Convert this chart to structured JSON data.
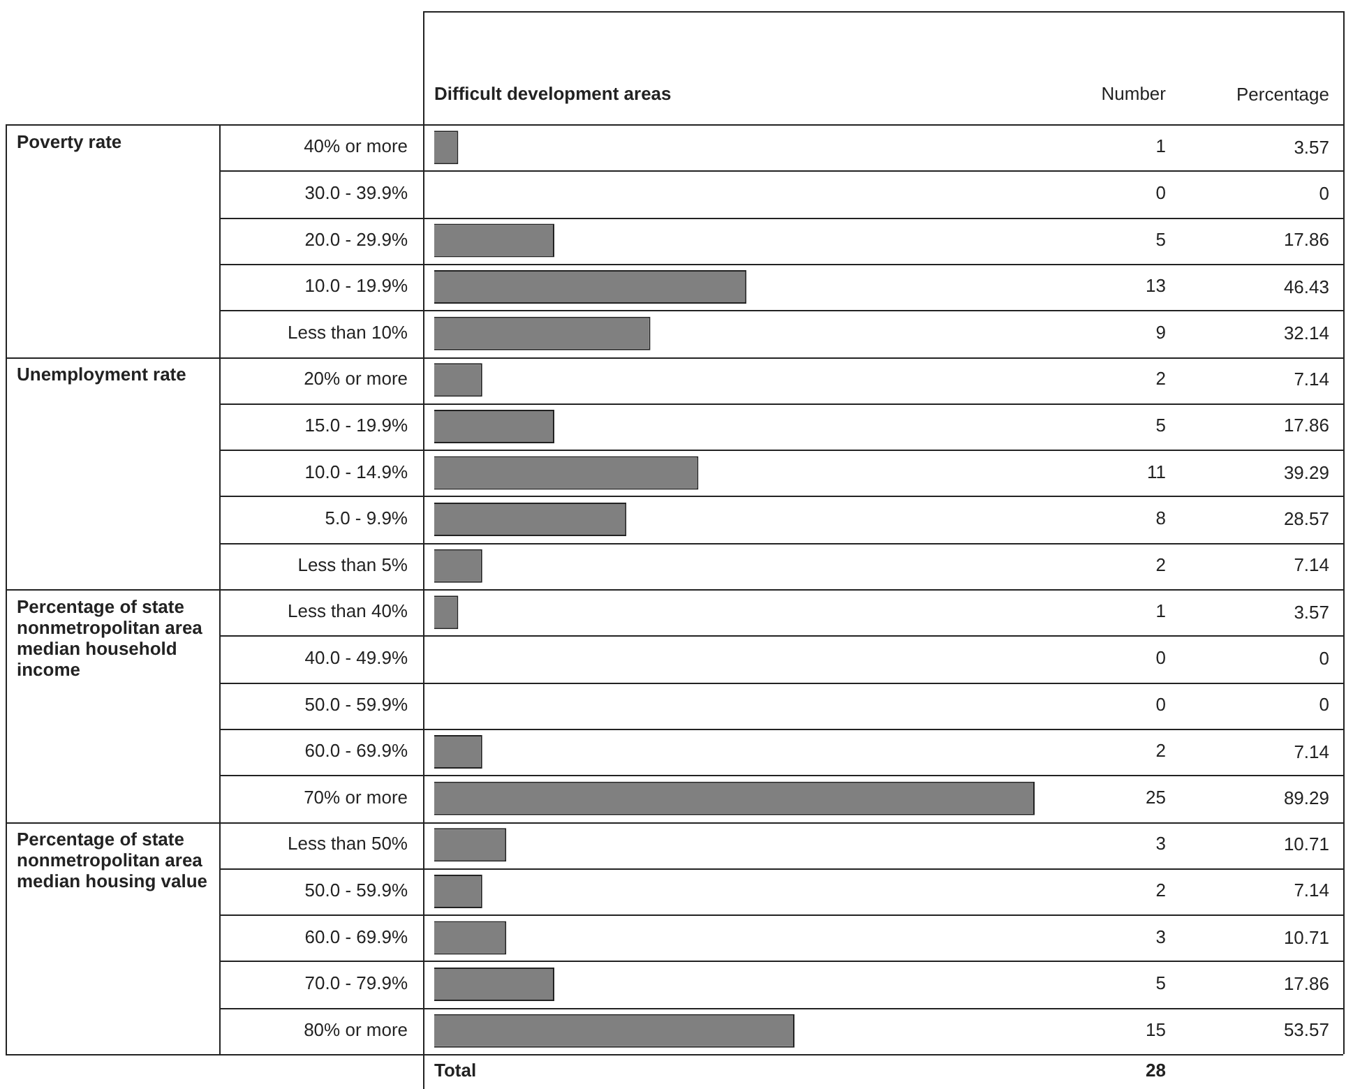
{
  "chart_data": [
    {
      "type": "bar",
      "orientation": "horizontal",
      "title": "Difficult development areas",
      "categories": [
        "40% or more",
        "30.0 - 39.9%",
        "20.0 - 29.9%",
        "10.0 - 19.9%",
        "Less than 10%",
        "20% or more",
        "15.0 - 19.9%",
        "10.0 - 14.9%",
        "5.0 - 9.9%",
        "Less than 5%",
        "Less than 40%",
        "40.0 - 49.9%",
        "50.0 - 59.9%",
        "60.0 - 69.9%",
        "70% or more",
        "Less than 50%",
        "50.0 - 59.9%",
        "60.0 - 69.9%",
        "70.0 - 79.9%",
        "80% or more"
      ],
      "series": [
        {
          "name": "Number",
          "color": "#808080",
          "values": [
            1,
            0,
            5,
            13,
            9,
            2,
            5,
            11,
            8,
            2,
            1,
            0,
            0,
            2,
            25,
            3,
            2,
            3,
            5,
            15
          ]
        }
      ],
      "data_labels": true,
      "annotations": [
        "Poverty rate",
        "Unemployment rate",
        "Percentage of state nonmetropolitan area median household income",
        "Percentage of state nonmetropolitan area median housing value",
        "Total",
        "28"
      ]
    },
    {
      "type": "other",
      "title": "Percentage",
      "categories": [
        null,
        null,
        null,
        null,
        null,
        null,
        null,
        null,
        null,
        null,
        null,
        null,
        null,
        null,
        null,
        null,
        null,
        null,
        null,
        null
      ],
      "values": [
        3.57,
        0,
        17.86,
        46.43,
        32.14,
        7.14,
        17.86,
        39.29,
        28.57,
        7.14,
        3.57,
        0,
        0,
        7.14,
        89.29,
        10.71,
        7.14,
        10.71,
        17.86,
        53.57
      ],
      "data_labels": true
    }
  ]
}
